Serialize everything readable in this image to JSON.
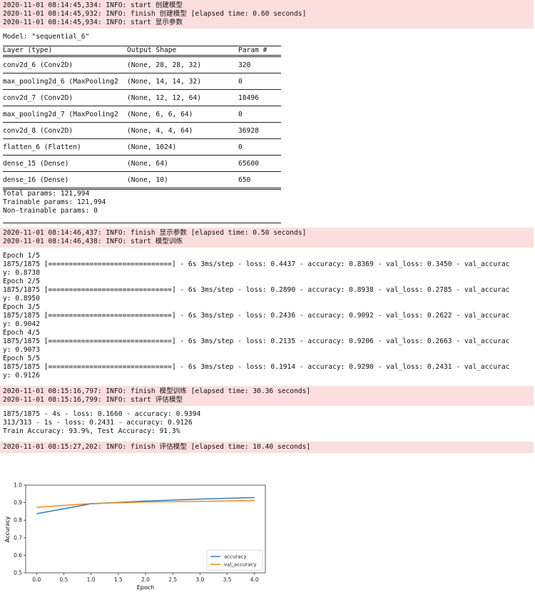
{
  "log_top": [
    "2020-11-01 08:14:45,334: INFO: start 创建模型",
    "2020-11-01 08:14:45,932: INFO: finish 创建模型 [elapsed time: 0.60 seconds]",
    "2020-11-01 08:14:45,934: INFO: start 显示参数"
  ],
  "summary": {
    "model_line": "Model: \"sequential_6\"",
    "headers": [
      "Layer (type)",
      "Output Shape",
      "Param #"
    ],
    "rows": [
      [
        "conv2d_6 (Conv2D)",
        "(None, 28, 28, 32)",
        "320"
      ],
      [
        "max_pooling2d_6 (MaxPooling2",
        "(None, 14, 14, 32)",
        "0"
      ],
      [
        "conv2d_7 (Conv2D)",
        "(None, 12, 12, 64)",
        "18496"
      ],
      [
        "max_pooling2d_7 (MaxPooling2",
        "(None, 6, 6, 64)",
        "0"
      ],
      [
        "conv2d_8 (Conv2D)",
        "(None, 4, 4, 64)",
        "36928"
      ],
      [
        "flatten_6 (Flatten)",
        "(None, 1024)",
        "0"
      ],
      [
        "dense_15 (Dense)",
        "(None, 64)",
        "65600"
      ],
      [
        "dense_16 (Dense)",
        "(None, 10)",
        "650"
      ]
    ],
    "totals": [
      "Total params: 121,994",
      "Trainable params: 121,994",
      "Non-trainable params: 0"
    ]
  },
  "log_mid": [
    "2020-11-01 08:14:46,437: INFO: finish 显示参数 [elapsed time: 0.50 seconds]",
    "2020-11-01 08:14:46,438: INFO: start 模型训练"
  ],
  "training": [
    "Epoch 1/5",
    "1875/1875 [==============================] - 6s 3ms/step - loss: 0.4437 - accuracy: 0.8369 - val_loss: 0.3450 - val_accurac",
    "y: 0.8738",
    "Epoch 2/5",
    "1875/1875 [==============================] - 6s 3ms/step - loss: 0.2890 - accuracy: 0.8938 - val_loss: 0.2785 - val_accurac",
    "y: 0.8950",
    "Epoch 3/5",
    "1875/1875 [==============================] - 6s 3ms/step - loss: 0.2436 - accuracy: 0.9092 - val_loss: 0.2622 - val_accurac",
    "y: 0.9042",
    "Epoch 4/5",
    "1875/1875 [==============================] - 6s 3ms/step - loss: 0.2135 - accuracy: 0.9206 - val_loss: 0.2663 - val_accurac",
    "y: 0.9073",
    "Epoch 5/5",
    "1875/1875 [==============================] - 6s 3ms/step - loss: 0.1914 - accuracy: 0.9290 - val_loss: 0.2431 - val_accurac",
    "y: 0.9126"
  ],
  "log_eval": [
    "2020-11-01 08:15:16,797: INFO: finish 模型训练 [elapsed time: 30.36 seconds]",
    "2020-11-01 08:15:16,799: INFO: start 评估模型"
  ],
  "eval_output": [
    "1875/1875 - 4s - loss: 0.1660 - accuracy: 0.9394",
    "313/313 - 1s - loss: 0.2431 - accuracy: 0.9126",
    "Train Accuracy: 93.9%, Test Accuracy: 91.3%"
  ],
  "log_end": [
    "2020-11-01 08:15:27,202: INFO: finish 评估模型 [elapsed time: 10.40 seconds]"
  ],
  "chart_data": {
    "type": "line",
    "xlabel": "Epoch",
    "ylabel": "Accuracy",
    "xlim": [
      -0.2,
      4.2
    ],
    "ylim": [
      0.5,
      1.0
    ],
    "xticks": [
      "0.0",
      "0.5",
      "1.0",
      "1.5",
      "2.0",
      "2.5",
      "3.0",
      "3.5",
      "4.0"
    ],
    "yticks": [
      "0.5",
      "0.6",
      "0.7",
      "0.8",
      "0.9",
      "1.0"
    ],
    "legend_position": "lower-right",
    "x": [
      0,
      1,
      2,
      3,
      4
    ],
    "series": [
      {
        "name": "accuracy",
        "color": "#1f77b4",
        "values": [
          0.8369,
          0.8938,
          0.9092,
          0.9206,
          0.929
        ]
      },
      {
        "name": "val_accuracy",
        "color": "#ff7f0e",
        "values": [
          0.8738,
          0.895,
          0.9042,
          0.9073,
          0.9126
        ]
      }
    ]
  }
}
